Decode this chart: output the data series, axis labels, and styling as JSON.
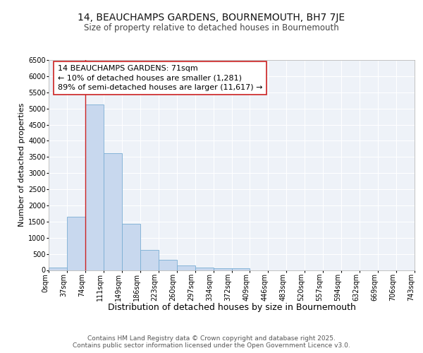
{
  "title": "14, BEAUCHAMPS GARDENS, BOURNEMOUTH, BH7 7JE",
  "subtitle": "Size of property relative to detached houses in Bournemouth",
  "xlabel": "Distribution of detached houses by size in Bournemouth",
  "ylabel": "Number of detached properties",
  "bar_color": "#c8d8ee",
  "bar_edge_color": "#7aaed4",
  "property_line_color": "#cc2222",
  "property_line_x": 2,
  "annotation_text": "14 BEAUCHAMPS GARDENS: 71sqm\n← 10% of detached houses are smaller (1,281)\n89% of semi-detached houses are larger (11,617) →",
  "bin_labels": [
    "0sqm",
    "37sqm",
    "74sqm",
    "111sqm",
    "149sqm",
    "186sqm",
    "223sqm",
    "260sqm",
    "297sqm",
    "334sqm",
    "372sqm",
    "409sqm",
    "446sqm",
    "483sqm",
    "520sqm",
    "557sqm",
    "594sqm",
    "632sqm",
    "669sqm",
    "706sqm",
    "743sqm"
  ],
  "bar_heights": [
    70,
    1640,
    5120,
    3620,
    1430,
    620,
    310,
    140,
    80,
    55,
    50,
    0,
    0,
    0,
    0,
    0,
    0,
    0,
    0,
    0
  ],
  "ylim": [
    0,
    6500
  ],
  "yticks": [
    0,
    500,
    1000,
    1500,
    2000,
    2500,
    3000,
    3500,
    4000,
    4500,
    5000,
    5500,
    6000,
    6500
  ],
  "background_color": "#eef2f8",
  "grid_color": "#ffffff",
  "footer_text": "Contains HM Land Registry data © Crown copyright and database right 2025.\nContains public sector information licensed under the Open Government Licence v3.0.",
  "title_fontsize": 10,
  "subtitle_fontsize": 8.5,
  "xlabel_fontsize": 9,
  "ylabel_fontsize": 8,
  "tick_fontsize": 7,
  "annotation_fontsize": 8,
  "footer_fontsize": 6.5
}
